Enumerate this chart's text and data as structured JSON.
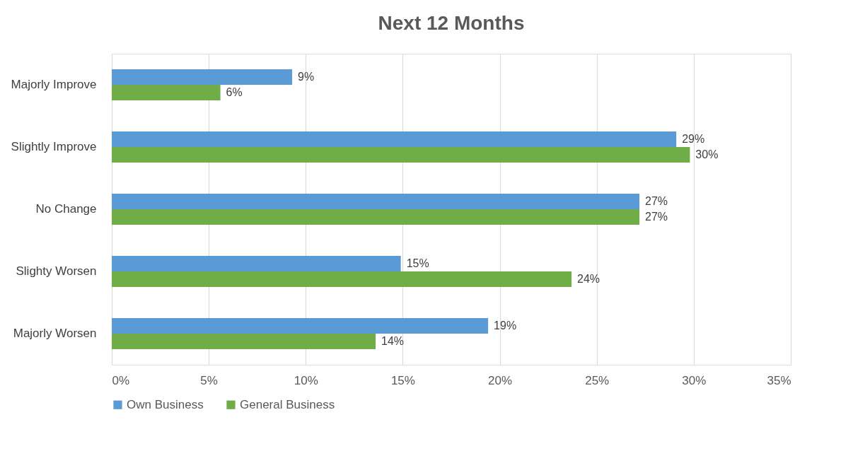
{
  "chart_data": {
    "type": "bar",
    "orientation": "horizontal",
    "title": "Next 12 Months",
    "categories": [
      "Majorly Improve",
      "Slightly Improve",
      "No Change",
      "Slighty Worsen",
      "Majorly Worsen"
    ],
    "series": [
      {
        "name": "Own Business",
        "color": "#5b9bd5",
        "values": [
          9.3,
          29.1,
          27.2,
          14.9,
          19.4
        ],
        "value_labels": [
          "9%",
          "29%",
          "27%",
          "15%",
          "19%"
        ]
      },
      {
        "name": "General Business",
        "color": "#70ad47",
        "values": [
          5.6,
          29.8,
          27.2,
          23.7,
          13.6
        ],
        "value_labels": [
          "6%",
          "30%",
          "27%",
          "24%",
          "14%"
        ]
      }
    ],
    "xlim": [
      0,
      35
    ],
    "xticks": [
      {
        "value": 0,
        "label": "0%"
      },
      {
        "value": 5,
        "label": "5%"
      },
      {
        "value": 10,
        "label": "10%"
      },
      {
        "value": 15,
        "label": "15%"
      },
      {
        "value": 20,
        "label": "20%"
      },
      {
        "value": 25,
        "label": "25%"
      },
      {
        "value": 30,
        "label": "30%"
      },
      {
        "value": 35,
        "label": "35%"
      }
    ],
    "grid": "x",
    "legend": "bottom"
  }
}
